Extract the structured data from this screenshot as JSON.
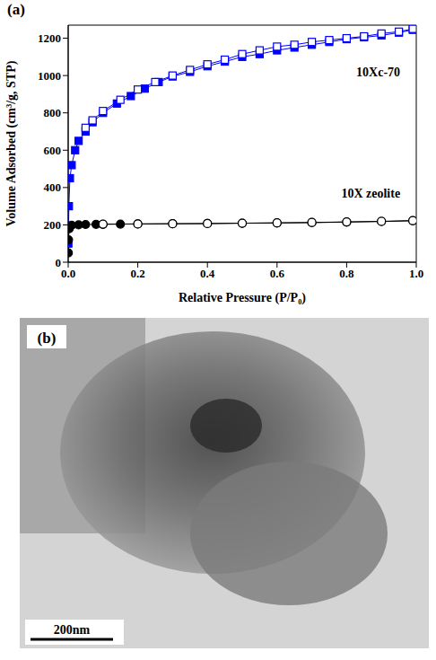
{
  "chart_data": {
    "type": "line",
    "panel_label": "(a)",
    "x_label": "Relative Pressure (P/P₀)",
    "y_label": "Volume Adsorbed (cm³/g, STP)",
    "xlim": [
      0,
      1.0
    ],
    "xticks": [
      {
        "value": 0,
        "label": "0.0"
      },
      {
        "value": 0.2,
        "label": "0.2"
      },
      {
        "value": 0.4,
        "label": "0.4"
      },
      {
        "value": 0.6,
        "label": "0.6"
      },
      {
        "value": 0.8,
        "label": "0.8"
      },
      {
        "value": 1.0,
        "label": "1.0"
      }
    ],
    "ylim": [
      0,
      1270
    ],
    "yticks": [
      0,
      200,
      400,
      600,
      800,
      1000,
      1200
    ],
    "grid": false,
    "series": [
      {
        "name": "10Xc-70",
        "color": "#0000ff",
        "marker": "square_filled",
        "line_style": "solid",
        "x": [
          0.0005,
          0.002,
          0.005,
          0.01,
          0.02,
          0.03,
          0.05,
          0.07,
          0.1,
          0.14,
          0.18,
          0.22,
          0.26,
          0.3,
          0.35,
          0.4,
          0.45,
          0.5,
          0.55,
          0.6,
          0.65,
          0.7,
          0.75,
          0.8,
          0.85,
          0.9,
          0.95,
          0.99
        ],
        "values": [
          100,
          300,
          450,
          520,
          600,
          650,
          700,
          750,
          800,
          850,
          890,
          930,
          965,
          995,
          1020,
          1050,
          1075,
          1100,
          1115,
          1135,
          1150,
          1165,
          1180,
          1195,
          1205,
          1215,
          1230,
          1245
        ]
      },
      {
        "name": "10Xc-70",
        "color": "#0000ff",
        "marker": "square_open",
        "line_style": "solid",
        "x": [
          0.99,
          0.95,
          0.9,
          0.85,
          0.8,
          0.75,
          0.7,
          0.65,
          0.6,
          0.55,
          0.5,
          0.45,
          0.4,
          0.35,
          0.3,
          0.25,
          0.2,
          0.15,
          0.1,
          0.07,
          0.05
        ],
        "values": [
          1250,
          1235,
          1225,
          1210,
          1200,
          1190,
          1180,
          1165,
          1155,
          1135,
          1115,
          1085,
          1060,
          1030,
          1000,
          965,
          925,
          870,
          810,
          760,
          720
        ]
      },
      {
        "name": "10X zeolite",
        "color": "#000000",
        "marker": "circle_filled",
        "line_style": "solid",
        "x": [
          0.0005,
          0.001,
          0.003,
          0.01,
          0.03,
          0.05,
          0.08,
          0.1,
          0.15,
          0.2,
          0.3,
          0.4,
          0.5,
          0.6,
          0.7,
          0.8,
          0.9,
          0.99
        ],
        "values": [
          50,
          120,
          180,
          198,
          200,
          202,
          203,
          203,
          204,
          205,
          206,
          207,
          209,
          210,
          212,
          215,
          218,
          222
        ]
      },
      {
        "name": "10X zeolite",
        "color": "#000000",
        "marker": "circle_open",
        "line_style": "solid",
        "x": [
          0.99,
          0.9,
          0.8,
          0.7,
          0.6,
          0.5,
          0.4,
          0.3,
          0.2,
          0.1
        ],
        "values": [
          223,
          219,
          216,
          213,
          211,
          209,
          207,
          206,
          205,
          204
        ]
      }
    ]
  },
  "image": {
    "panel_label": "(b)",
    "scale_bar_label": "200nm"
  }
}
